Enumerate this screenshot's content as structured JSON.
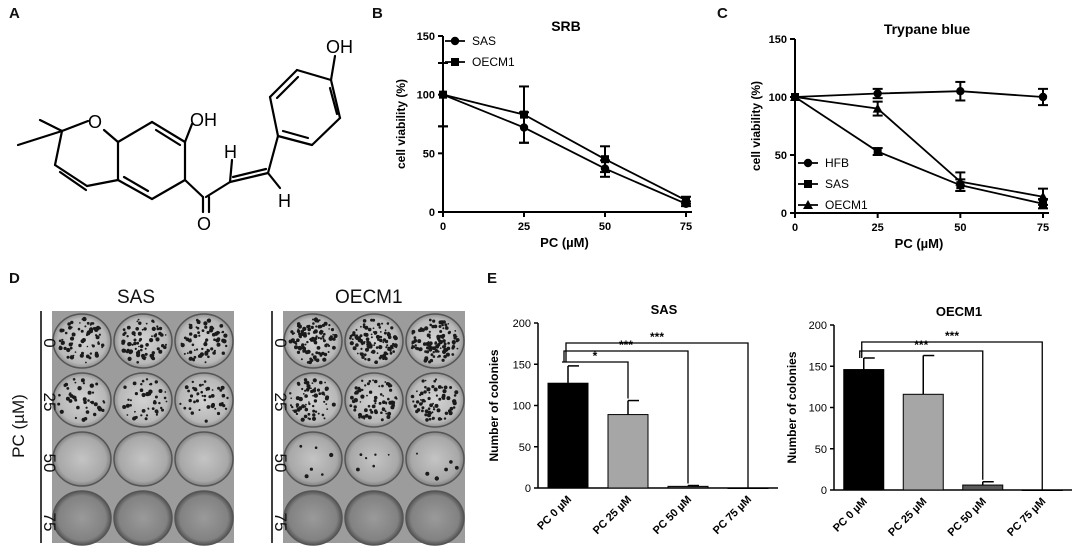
{
  "panels": {
    "A": "A",
    "B": "B",
    "C": "C",
    "D": "D",
    "E": "E"
  },
  "structure": {
    "atoms": {
      "oh_top": "OH",
      "oh_ring": "OH",
      "o_ring": "O",
      "o_ketone": "O",
      "h1": "H",
      "h2": "H"
    }
  },
  "plates": {
    "sas_title": "SAS",
    "oecm1_title": "OECM1",
    "ylabel": "PC (µM)",
    "doses": [
      "0",
      "25",
      "50",
      "75"
    ]
  },
  "colors": {
    "black": "#000000",
    "gray": "#a6a6a6",
    "dark_gray": "#5a5a5a"
  },
  "chart_data": [
    {
      "id": "B",
      "type": "line",
      "title": "SRB",
      "xlabel": "PC (µM)",
      "ylabel": "cell viability (%)",
      "x": [
        0,
        25,
        50,
        75
      ],
      "xticks": [
        "0",
        "25",
        "50",
        "75"
      ],
      "yticks": [
        "0",
        "50",
        "100",
        "150"
      ],
      "ylim": [
        0,
        150
      ],
      "legend_position": "top-left",
      "series": [
        {
          "name": "SAS",
          "marker": "circle",
          "values": [
            100,
            72,
            37,
            7
          ],
          "errors": [
            27,
            13,
            7,
            2
          ]
        },
        {
          "name": "OECM1",
          "marker": "square",
          "values": [
            100,
            83,
            45,
            10
          ],
          "errors": [
            27,
            24,
            11,
            3
          ]
        }
      ]
    },
    {
      "id": "C",
      "type": "line",
      "title": "Trypane blue",
      "xlabel": "PC (µM)",
      "ylabel": "cell viability (%)",
      "x": [
        0,
        25,
        50,
        75
      ],
      "xticks": [
        "0",
        "25",
        "50",
        "75"
      ],
      "yticks": [
        "0",
        "50",
        "100",
        "150"
      ],
      "ylim": [
        0,
        150
      ],
      "legend_position": "bottom-left",
      "series": [
        {
          "name": "HFB",
          "marker": "circle",
          "values": [
            100,
            103,
            105,
            100
          ],
          "errors": [
            0,
            4,
            8,
            7
          ]
        },
        {
          "name": "SAS",
          "marker": "square",
          "values": [
            100,
            53,
            24,
            8
          ],
          "errors": [
            0,
            3,
            5,
            4
          ]
        },
        {
          "name": "OECM1",
          "marker": "triangle",
          "values": [
            100,
            90,
            27,
            14
          ],
          "errors": [
            0,
            6,
            8,
            7
          ]
        }
      ]
    },
    {
      "id": "E1",
      "type": "bar",
      "title": "SAS",
      "ylabel": "Number of colonies",
      "categories": [
        "PC 0 µM",
        "PC 25 µM",
        "PC 50 µM",
        "PC 75 µM"
      ],
      "values": [
        127,
        89,
        2,
        0
      ],
      "errors": [
        21,
        17,
        1,
        0
      ],
      "bar_colors": [
        "#000000",
        "#a6a6a6",
        "#5a5a5a",
        "#ffffff"
      ],
      "yticks": [
        "0",
        "50",
        "100",
        "150",
        "200"
      ],
      "ylim": [
        0,
        200
      ],
      "significance": [
        {
          "from": 0,
          "to": 1,
          "label": "*"
        },
        {
          "from": 0,
          "to": 2,
          "label": "***"
        },
        {
          "from": 0,
          "to": 3,
          "label": "***"
        }
      ]
    },
    {
      "id": "E2",
      "type": "bar",
      "title": "OECM1",
      "ylabel": "Number of colonies",
      "categories": [
        "PC 0 µM",
        "PC 25 µM",
        "PC 50 µM",
        "PC 75 µM"
      ],
      "values": [
        146,
        116,
        6,
        0
      ],
      "errors": [
        14,
        47,
        4,
        0
      ],
      "bar_colors": [
        "#000000",
        "#a6a6a6",
        "#5a5a5a",
        "#ffffff"
      ],
      "yticks": [
        "0",
        "50",
        "100",
        "150",
        "200"
      ],
      "ylim": [
        0,
        200
      ],
      "significance": [
        {
          "from": 0,
          "to": 2,
          "label": "***"
        },
        {
          "from": 0,
          "to": 3,
          "label": "***"
        }
      ]
    }
  ]
}
